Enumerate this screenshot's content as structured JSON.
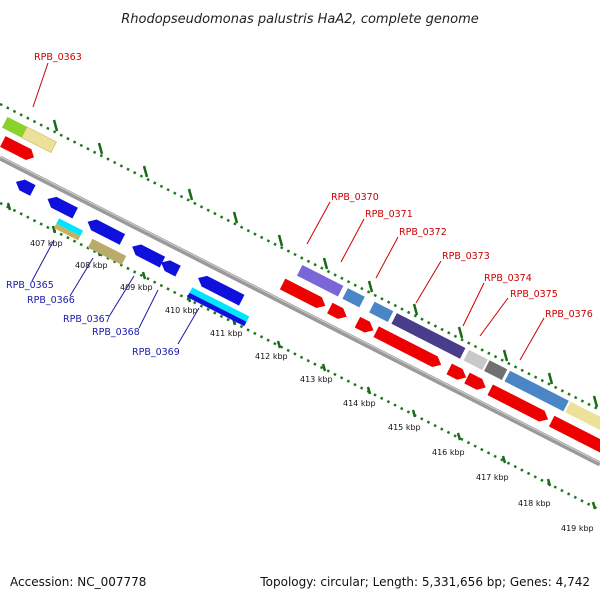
{
  "title": "Rhodopseudomonas palustris HaA2, complete genome",
  "footer": {
    "accession": "Accession: NC_007778",
    "summary": "Topology: circular; Length: 5,331,656 bp; Genes: 4,742"
  },
  "ticks": [
    "407 kbp",
    "408 kbp",
    "409 kbp",
    "410 kbp",
    "411 kbp",
    "412 kbp",
    "413 kbp",
    "414 kbp",
    "415 kbp",
    "416 kbp",
    "417 kbp",
    "418 kbp",
    "419 kbp"
  ],
  "labels_top": [
    "RPB_0363",
    "RPB_0370",
    "RPB_0371",
    "RPB_0372",
    "RPB_0373",
    "RPB_0374",
    "RPB_0375",
    "RPB_0376"
  ],
  "labels_bottom": [
    "RPB_0365",
    "RPB_0366",
    "RPB_0367",
    "RPB_0368",
    "RPB_0369"
  ],
  "colors": {
    "forward_label": "#cc0000",
    "reverse_label": "#1a1aaa",
    "backbone": "#8a8a8a",
    "tick_dot": "#1a7a1a"
  }
}
